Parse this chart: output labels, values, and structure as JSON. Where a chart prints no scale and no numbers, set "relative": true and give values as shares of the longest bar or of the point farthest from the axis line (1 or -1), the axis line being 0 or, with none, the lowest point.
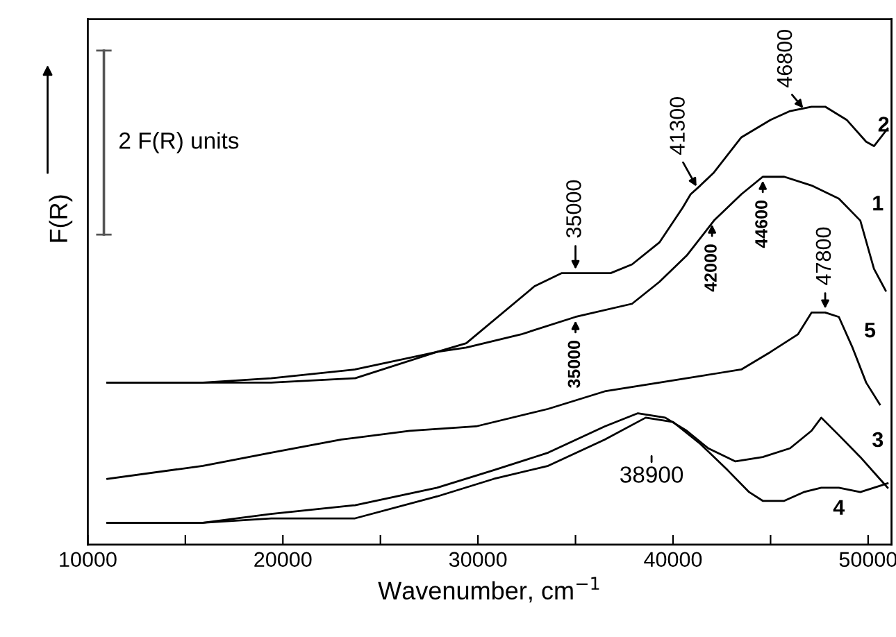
{
  "chart_data": {
    "type": "line",
    "relative": true,
    "xlabel": "Wavenumber, cm$^{−1}$",
    "ylabel": "F(R)",
    "xlim": [
      10000,
      51200
    ],
    "xticks": [
      10000,
      {
        "value": 15000,
        "label": null
      },
      20000,
      {
        "value": 25000,
        "label": null
      },
      30000,
      {
        "value": 35000,
        "label": null
      },
      40000,
      {
        "value": 45000,
        "label": null
      },
      50000
    ],
    "grid": false,
    "legend": false,
    "marker": "none",
    "line_style": "solid",
    "tick_labels": "x",
    "annotations": [
      "2 F(R) units",
      {
        "text": "35000",
        "x": 35000,
        "y": 0.62
      },
      {
        "text": "41300",
        "x": 41300,
        "y": 0.81
      },
      {
        "text": "46800",
        "x": 46800,
        "y": 0.99
      },
      {
        "text": "35000",
        "x": 35000,
        "y": 0.52
      },
      {
        "text": "42000",
        "x": 42000,
        "y": 0.74
      },
      {
        "text": "44600",
        "x": 44600,
        "y": 0.84
      },
      {
        "text": "47800",
        "x": 47800,
        "y": 0.53
      },
      {
        "text": "38900",
        "x": 38900,
        "y": 0.29
      }
    ],
    "series": [
      {
        "name": "1",
        "color": "#000000",
        "x": [
          11000,
          15900,
          19400,
          23700,
          27900,
          29400,
          32200,
          35000,
          37900,
          39300,
          40700,
          42100,
          43500,
          44600,
          45700,
          47100,
          48500,
          49600,
          50300,
          50900
        ],
        "values": [
          0.37,
          0.37,
          0.38,
          0.4,
          0.44,
          0.45,
          0.48,
          0.52,
          0.55,
          0.6,
          0.66,
          0.74,
          0.8,
          0.84,
          0.84,
          0.82,
          0.79,
          0.74,
          0.63,
          0.58
        ]
      },
      {
        "name": "2",
        "color": "#000000",
        "x": [
          11000,
          15900,
          19400,
          23700,
          27900,
          29400,
          32900,
          34300,
          35000,
          36800,
          37900,
          39300,
          40500,
          40900,
          41400,
          42100,
          43500,
          45000,
          46000,
          47100,
          47800,
          48900,
          49900,
          50300,
          51000
        ],
        "values": [
          0.37,
          0.37,
          0.37,
          0.38,
          0.44,
          0.46,
          0.59,
          0.62,
          0.62,
          0.62,
          0.64,
          0.69,
          0.77,
          0.8,
          0.82,
          0.85,
          0.93,
          0.97,
          0.99,
          1.0,
          1.0,
          0.97,
          0.92,
          0.91,
          0.95
        ]
      },
      {
        "name": "3",
        "color": "#000000",
        "x": [
          11000,
          15900,
          19400,
          23700,
          27900,
          30800,
          33600,
          36500,
          38200,
          39600,
          40700,
          41800,
          43200,
          44600,
          46000,
          47100,
          47600,
          48500,
          49600,
          50600,
          51000
        ],
        "values": [
          0.05,
          0.05,
          0.07,
          0.09,
          0.13,
          0.17,
          0.21,
          0.27,
          0.3,
          0.29,
          0.26,
          0.22,
          0.19,
          0.2,
          0.22,
          0.26,
          0.29,
          0.25,
          0.2,
          0.15,
          0.13
        ]
      },
      {
        "name": "4",
        "color": "#000000",
        "x": [
          11000,
          15900,
          19400,
          23700,
          27900,
          30800,
          33600,
          36500,
          38600,
          40000,
          41400,
          42800,
          43900,
          44600,
          45700,
          46700,
          47600,
          48500,
          49600,
          51000
        ],
        "values": [
          0.05,
          0.05,
          0.06,
          0.06,
          0.11,
          0.15,
          0.18,
          0.24,
          0.29,
          0.28,
          0.23,
          0.17,
          0.12,
          0.1,
          0.1,
          0.12,
          0.13,
          0.13,
          0.12,
          0.14
        ]
      },
      {
        "name": "5",
        "color": "#000000",
        "x": [
          11000,
          15900,
          19400,
          23000,
          26500,
          29900,
          33600,
          36500,
          39300,
          42100,
          43500,
          45000,
          46400,
          47100,
          47800,
          48500,
          49200,
          49900,
          50600
        ],
        "values": [
          0.15,
          0.18,
          0.21,
          0.24,
          0.26,
          0.27,
          0.31,
          0.35,
          0.37,
          0.39,
          0.4,
          0.44,
          0.48,
          0.53,
          0.53,
          0.52,
          0.45,
          0.37,
          0.32
        ]
      }
    ]
  }
}
